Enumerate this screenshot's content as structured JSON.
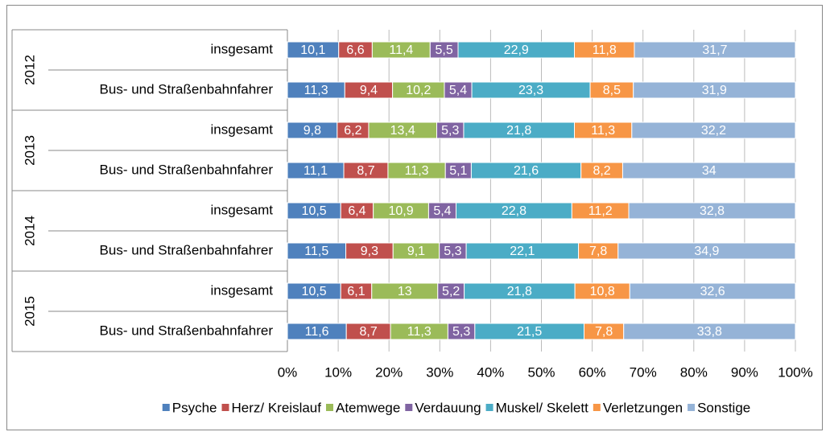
{
  "chart_data": {
    "type": "stacked-bar-horizontal",
    "groups": [
      "2012",
      "2013",
      "2014",
      "2015"
    ],
    "categories": [
      "insgesamt",
      "Bus- und Straßenbahnfahrer",
      "insgesamt",
      "Bus- und Straßenbahnfahrer",
      "insgesamt",
      "Bus- und Straßenbahnfahrer",
      "insgesamt",
      "Bus- und Straßenbahnfahrer"
    ],
    "series": [
      {
        "name": "Psyche",
        "color": "#4f81bd",
        "values": [
          10.1,
          11.3,
          9.8,
          11.1,
          10.5,
          11.5,
          10.5,
          11.6
        ],
        "value_labels": [
          "10,1",
          "11,3",
          "9,8",
          "11,1",
          "10,5",
          "11,5",
          "10,5",
          "11,6"
        ]
      },
      {
        "name": "Herz/ Kreislauf",
        "color": "#c0504d",
        "values": [
          6.6,
          9.4,
          6.2,
          8.7,
          6.4,
          9.3,
          6.1,
          8.7
        ],
        "value_labels": [
          "6,6",
          "9,4",
          "6,2",
          "8,7",
          "6,4",
          "9,3",
          "6,1",
          "8,7"
        ]
      },
      {
        "name": "Atemwege",
        "color": "#9bbb59",
        "values": [
          11.4,
          10.2,
          13.4,
          11.3,
          10.9,
          9.1,
          13,
          11.3
        ],
        "value_labels": [
          "11,4",
          "10,2",
          "13,4",
          "11,3",
          "10,9",
          "9,1",
          "13",
          "11,3"
        ]
      },
      {
        "name": "Verdauung",
        "color": "#8064a2",
        "values": [
          5.5,
          5.4,
          5.3,
          5.1,
          5.4,
          5.3,
          5.2,
          5.3
        ],
        "value_labels": [
          "5,5",
          "5,4",
          "5,3",
          "5,1",
          "5,4",
          "5,3",
          "5,2",
          "5,3"
        ]
      },
      {
        "name": "Muskel/ Skelett",
        "color": "#4bacc6",
        "values": [
          22.9,
          23.3,
          21.8,
          21.6,
          22.8,
          22.1,
          21.8,
          21.5
        ],
        "value_labels": [
          "22,9",
          "23,3",
          "21,8",
          "21,6",
          "22,8",
          "22,1",
          "21,8",
          "21,5"
        ]
      },
      {
        "name": "Verletzungen",
        "color": "#f79646",
        "values": [
          11.8,
          8.5,
          11.3,
          8.2,
          11.2,
          7.8,
          10.8,
          7.8
        ],
        "value_labels": [
          "11,8",
          "8,5",
          "11,3",
          "8,2",
          "11,2",
          "7,8",
          "10,8",
          "7,8"
        ]
      },
      {
        "name": "Sonstige",
        "color": "#95b3d7",
        "values": [
          31.7,
          31.9,
          32.2,
          34,
          32.8,
          34.9,
          32.6,
          33.8
        ],
        "value_labels": [
          "31,7",
          "31,9",
          "32,2",
          "34",
          "32,8",
          "34,9",
          "32,6",
          "33,8"
        ]
      }
    ],
    "xlim": [
      0,
      100
    ],
    "xticks": [
      {
        "value": 0,
        "label": "0%"
      },
      {
        "value": 10,
        "label": "10%"
      },
      {
        "value": 20,
        "label": "20%"
      },
      {
        "value": 30,
        "label": "30%"
      },
      {
        "value": 40,
        "label": "40%"
      },
      {
        "value": 50,
        "label": "50%"
      },
      {
        "value": 60,
        "label": "60%"
      },
      {
        "value": 70,
        "label": "70%"
      },
      {
        "value": 80,
        "label": "80%"
      },
      {
        "value": 90,
        "label": "90%"
      },
      {
        "value": 100,
        "label": "100%"
      }
    ],
    "grid": true,
    "legend": "bottom"
  }
}
